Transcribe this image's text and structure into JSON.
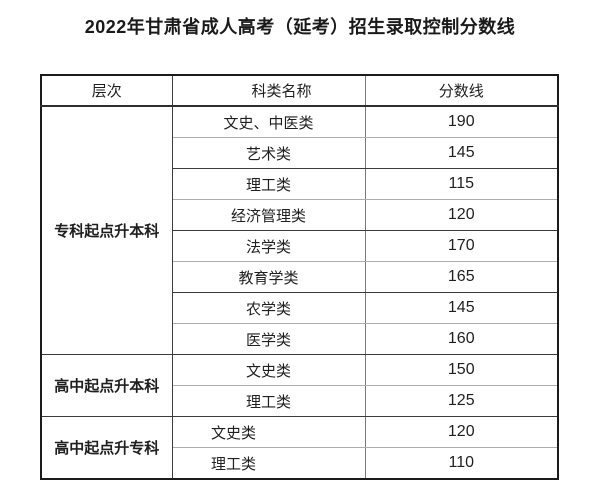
{
  "page": {
    "title": "2022年甘肃省成人高考（延考）招生录取控制分数线",
    "background_color": "#ffffff",
    "text_color": "#1f1f1f",
    "border_color": "#1b1b1b"
  },
  "table": {
    "headers": [
      "层次",
      "科类名称",
      "分数线"
    ],
    "sections": [
      {
        "level": "专科起点升本科",
        "rows": [
          {
            "category": "文史、中医类",
            "score": "190"
          },
          {
            "category": "艺术类",
            "score": "145"
          },
          {
            "category": "理工类",
            "score": "115"
          },
          {
            "category": "经济管理类",
            "score": "120"
          },
          {
            "category": "法学类",
            "score": "170"
          },
          {
            "category": "教育学类",
            "score": "165"
          },
          {
            "category": "农学类",
            "score": "145"
          },
          {
            "category": "医学类",
            "score": "160"
          }
        ]
      },
      {
        "level": "高中起点升本科",
        "rows": [
          {
            "category": "文史类",
            "score": "150"
          },
          {
            "category": "理工类",
            "score": "125"
          }
        ]
      },
      {
        "level": "高中起点升专科",
        "rows": [
          {
            "category": "文史类",
            "score": "120"
          },
          {
            "category": "理工类",
            "score": "110"
          }
        ]
      }
    ]
  }
}
